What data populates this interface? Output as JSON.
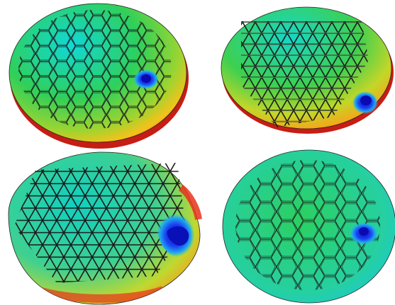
{
  "panels": [
    {
      "name": "panel-top-left",
      "pattern": "hexagon",
      "colors": {
        "base": "#2ecc45",
        "warm_edge": "#e8321c",
        "indent": "#0a1fe0"
      },
      "indent": "right-center"
    },
    {
      "name": "panel-top-right",
      "pattern": "triangle",
      "colors": {
        "base": "#2ecc45",
        "warm_edge": "#e8321c",
        "indent": "#0a1fe0"
      },
      "indent": "lower-right"
    },
    {
      "name": "panel-bottom-left",
      "pattern": "triangle",
      "colors": {
        "base": "#3cd0a0",
        "warm_edge": "#e8321c",
        "indent": "#0a1fe0"
      },
      "indent": "right-large"
    },
    {
      "name": "panel-bottom-right",
      "pattern": "hexagon-sparse",
      "colors": {
        "base": "#2ecc60",
        "warm_edge": "#e8321c",
        "indent": "#0a1fe0"
      },
      "indent": "right-center"
    }
  ]
}
